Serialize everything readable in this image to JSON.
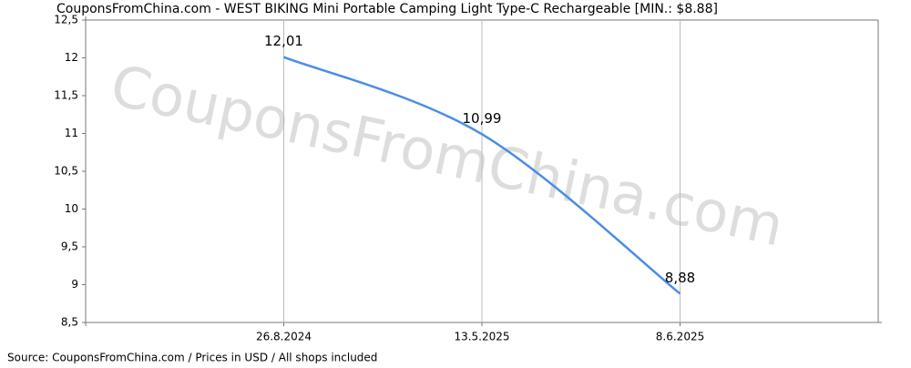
{
  "chart_data": {
    "type": "line",
    "title": "CouponsFromChina.com - WEST BIKING Mini Portable Camping Light Type-C Rechargeable [MIN.: $8.88]",
    "watermark": "CouponsFromChina.com",
    "source": "Source: CouponsFromChina.com / Prices in USD / All shops included",
    "categories": [
      "26.8.2024",
      "13.5.2025",
      "8.6.2025"
    ],
    "series": [
      {
        "name": "Price",
        "color": "#4a8de6",
        "values": [
          12.01,
          10.99,
          8.88
        ],
        "value_labels": [
          "12,01",
          "10,99",
          "8,88"
        ]
      }
    ],
    "ylim": [
      8.5,
      12.5
    ],
    "yticks": [
      {
        "value": 8.5,
        "label": "8,5"
      },
      9,
      {
        "value": 9.5,
        "label": "9,5"
      },
      10,
      {
        "value": 10.5,
        "label": "10,5"
      },
      11,
      {
        "value": 11.5,
        "label": "11,5"
      },
      12,
      {
        "value": 12.5,
        "label": "12,5"
      }
    ],
    "grid": true
  }
}
